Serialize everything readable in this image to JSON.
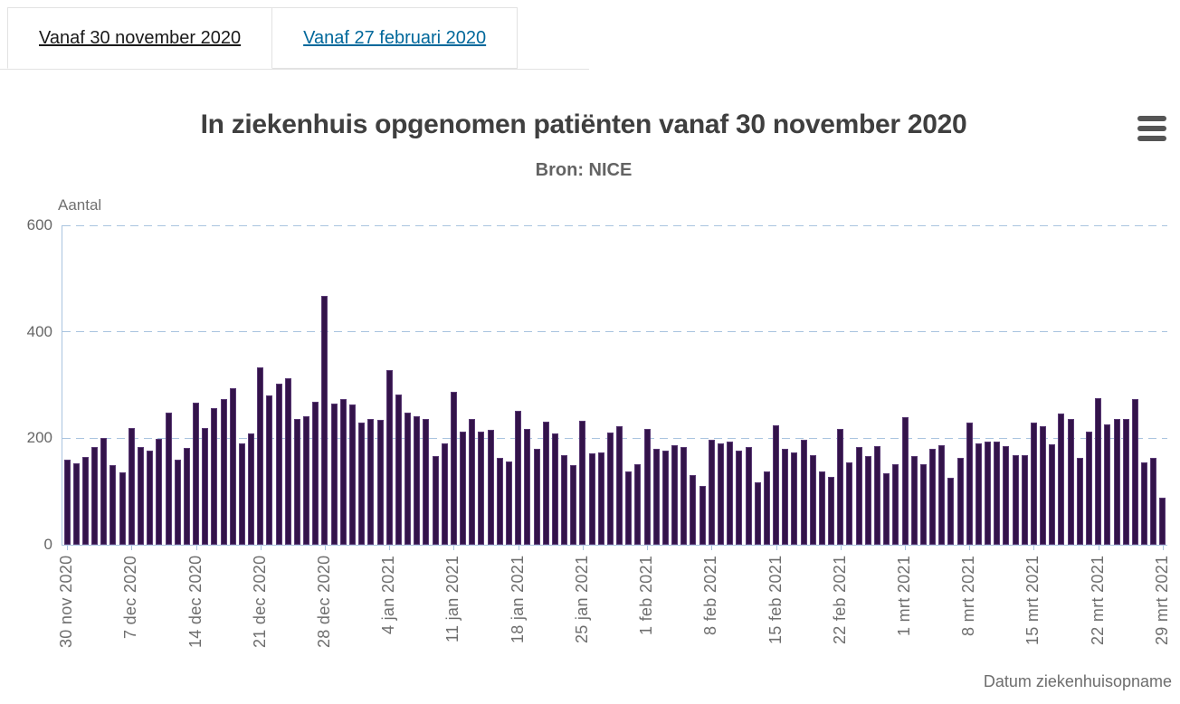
{
  "tabs": [
    {
      "label": "Vanaf 30 november 2020",
      "active": true
    },
    {
      "label": "Vanaf 27 februari 2020",
      "active": false
    }
  ],
  "menu": {
    "icon": "hamburger-menu-icon"
  },
  "colors": {
    "bar_fill": "#33134a",
    "bar_border": "#5a3a75",
    "axis": "#a9c4df",
    "link_blue": "#01689b",
    "title_text": "#3f3f3f",
    "axis_text": "#6e6e6e"
  },
  "chart_data": {
    "type": "bar",
    "title": "In ziekenhuis opgenomen patiënten vanaf 30 november 2020",
    "subtitle": "Bron: NICE",
    "ylabel": "Aantal",
    "xlabel": "Datum ziekenhuisopname",
    "ylim": [
      0,
      600
    ],
    "yticks": [
      0,
      200,
      400,
      600
    ],
    "grid": "dashed horizontal gridlines, light blue",
    "legend": "none",
    "xtick_every": 7,
    "xtick_labels": [
      "30 nov 2020",
      "7 dec 2020",
      "14 dec 2020",
      "21 dec 2020",
      "28 dec 2020",
      "4 jan 2021",
      "11 jan 2021",
      "18 jan 2021",
      "25 jan 2021",
      "1 feb 2021",
      "8 feb 2021",
      "15 feb 2021",
      "22 feb 2021",
      "1 mrt 2021",
      "8 mrt 2021",
      "15 mrt 2021",
      "22 mrt 2021",
      "29 mrt 2021"
    ],
    "x": [
      "30 nov 2020",
      "1 dec 2020",
      "2 dec 2020",
      "3 dec 2020",
      "4 dec 2020",
      "5 dec 2020",
      "6 dec 2020",
      "7 dec 2020",
      "8 dec 2020",
      "9 dec 2020",
      "10 dec 2020",
      "11 dec 2020",
      "12 dec 2020",
      "13 dec 2020",
      "14 dec 2020",
      "15 dec 2020",
      "16 dec 2020",
      "17 dec 2020",
      "18 dec 2020",
      "19 dec 2020",
      "20 dec 2020",
      "21 dec 2020",
      "22 dec 2020",
      "23 dec 2020",
      "24 dec 2020",
      "25 dec 2020",
      "26 dec 2020",
      "27 dec 2020",
      "28 dec 2020",
      "29 dec 2020",
      "30 dec 2020",
      "31 dec 2020",
      "1 jan 2021",
      "2 jan 2021",
      "3 jan 2021",
      "4 jan 2021",
      "5 jan 2021",
      "6 jan 2021",
      "7 jan 2021",
      "8 jan 2021",
      "9 jan 2021",
      "10 jan 2021",
      "11 jan 2021",
      "12 jan 2021",
      "13 jan 2021",
      "14 jan 2021",
      "15 jan 2021",
      "16 jan 2021",
      "17 jan 2021",
      "18 jan 2021",
      "19 jan 2021",
      "20 jan 2021",
      "21 jan 2021",
      "22 jan 2021",
      "23 jan 2021",
      "24 jan 2021",
      "25 jan 2021",
      "26 jan 2021",
      "27 jan 2021",
      "28 jan 2021",
      "29 jan 2021",
      "30 jan 2021",
      "31 jan 2021",
      "1 feb 2021",
      "2 feb 2021",
      "3 feb 2021",
      "4 feb 2021",
      "5 feb 2021",
      "6 feb 2021",
      "7 feb 2021",
      "8 feb 2021",
      "9 feb 2021",
      "10 feb 2021",
      "11 feb 2021",
      "12 feb 2021",
      "13 feb 2021",
      "14 feb 2021",
      "15 feb 2021",
      "16 feb 2021",
      "17 feb 2021",
      "18 feb 2021",
      "19 feb 2021",
      "20 feb 2021",
      "21 feb 2021",
      "22 feb 2021",
      "23 feb 2021",
      "24 feb 2021",
      "25 feb 2021",
      "26 feb 2021",
      "27 feb 2021",
      "28 feb 2021",
      "1 mrt 2021",
      "2 mrt 2021",
      "3 mrt 2021",
      "4 mrt 2021",
      "5 mrt 2021",
      "6 mrt 2021",
      "7 mrt 2021",
      "8 mrt 2021",
      "9 mrt 2021",
      "10 mrt 2021",
      "11 mrt 2021",
      "12 mrt 2021",
      "13 mrt 2021",
      "14 mrt 2021",
      "15 mrt 2021",
      "16 mrt 2021",
      "17 mrt 2021",
      "18 mrt 2021",
      "19 mrt 2021",
      "20 mrt 2021",
      "21 mrt 2021",
      "22 mrt 2021",
      "23 mrt 2021",
      "24 mrt 2021",
      "25 mrt 2021",
      "26 mrt 2021",
      "27 mrt 2021",
      "28 mrt 2021",
      "29 mrt 2021"
    ],
    "values": [
      160,
      153,
      165,
      184,
      201,
      149,
      136,
      220,
      184,
      176,
      199,
      248,
      159,
      182,
      267,
      219,
      256,
      274,
      294,
      190,
      209,
      333,
      280,
      303,
      313,
      237,
      241,
      269,
      467,
      266,
      273,
      263,
      229,
      237,
      234,
      328,
      283,
      249,
      241,
      236,
      166,
      191,
      287,
      213,
      237,
      213,
      216,
      163,
      156,
      252,
      217,
      180,
      232,
      209,
      168,
      150,
      233,
      171,
      174,
      210,
      223,
      137,
      151,
      218,
      181,
      177,
      187,
      183,
      131,
      111,
      198,
      191,
      193,
      176,
      184,
      117,
      137,
      224,
      181,
      174,
      198,
      168,
      138,
      128,
      218,
      154,
      184,
      167,
      186,
      134,
      152,
      239,
      166,
      152,
      181,
      187,
      125,
      164,
      230,
      191,
      193,
      194,
      186,
      168,
      168,
      230,
      223,
      188,
      247,
      236,
      164,
      212,
      276,
      226,
      237,
      237,
      273,
      154,
      164,
      88
    ]
  }
}
